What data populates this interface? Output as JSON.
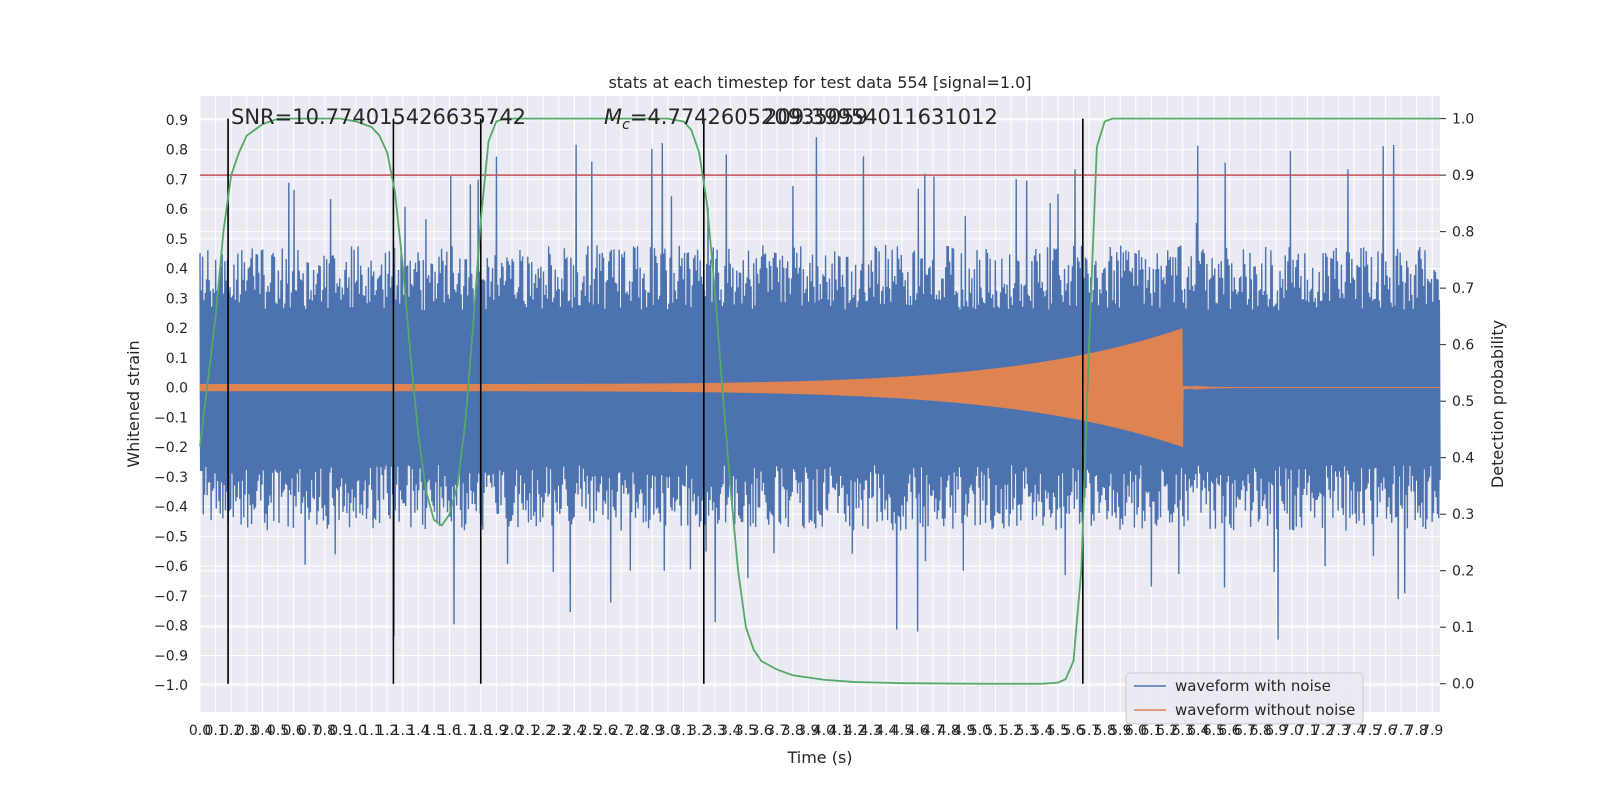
{
  "chart_data": {
    "type": "line",
    "title": "stats at each timestep for test data 554 [signal=1.0]",
    "xlabel": "Time (s)",
    "ylabel": "Whitened strain",
    "y2label": "Detection probability",
    "xlim": [
      0.0,
      7.95
    ],
    "ylim": [
      -1.09,
      0.98
    ],
    "y2lim": [
      -0.05,
      1.04
    ],
    "grid": true,
    "x_ticks": [
      "0.0",
      "0.1",
      "0.2",
      "0.3",
      "0.4",
      "0.5",
      "0.6",
      "0.7",
      "0.8",
      "0.9",
      "1.0",
      "1.1",
      "1.2",
      "1.3",
      "1.4",
      "1.5",
      "1.6",
      "1.7",
      "1.8",
      "1.9",
      "2.0",
      "2.1",
      "2.2",
      "2.3",
      "2.4",
      "2.5",
      "2.6",
      "2.7",
      "2.8",
      "2.9",
      "3.0",
      "3.1",
      "3.2",
      "3.3",
      "3.4",
      "3.5",
      "3.6",
      "3.7",
      "3.8",
      "3.9",
      "4.0",
      "4.1",
      "4.2",
      "4.3",
      "4.4",
      "4.5",
      "4.6",
      "4.7",
      "4.8",
      "4.9",
      "5.0",
      "5.1",
      "5.2",
      "5.3",
      "5.4",
      "5.5",
      "5.6",
      "5.7",
      "5.8",
      "5.9",
      "6.0",
      "6.1",
      "6.2",
      "6.3",
      "6.4",
      "6.5",
      "6.6",
      "6.7",
      "6.8",
      "6.9",
      "7.0",
      "7.1",
      "7.2",
      "7.3",
      "7.4",
      "7.5",
      "7.6",
      "7.7",
      "7.8",
      "7.9"
    ],
    "y_ticks": [
      "0.9",
      "0.8",
      "0.7",
      "0.6",
      "0.5",
      "0.4",
      "0.3",
      "0.2",
      "0.1",
      "0.0",
      "−0.1",
      "−0.2",
      "−0.3",
      "−0.4",
      "−0.5",
      "−0.6",
      "−0.7",
      "−0.8",
      "−0.9",
      "−1.0"
    ],
    "y2_ticks": [
      "1.0",
      "0.9",
      "0.8",
      "0.7",
      "0.6",
      "0.5",
      "0.4",
      "0.3",
      "0.2",
      "0.1",
      "0.0"
    ],
    "annotations": {
      "snr": "SNR=10.774015426635742",
      "mc_symbol": "M",
      "mc_sub": "c",
      "mc_value": "=4.774260520935059",
      "mc_overlap": "209.39954011631012"
    },
    "threshold_y2": 0.9,
    "vlines_x": [
      0.18,
      1.24,
      1.8,
      3.23,
      5.66
    ],
    "series": [
      {
        "name": "waveform with noise",
        "color": "#4c72b0",
        "envelope_hi": 0.5,
        "envelope_lo": -0.45
      },
      {
        "name": "waveform without noise",
        "color": "#dd8452",
        "chirp_start": 0.0,
        "merger": 6.3,
        "peak": 0.2
      },
      {
        "color": "#55a868",
        "x": [
          0.0,
          0.1,
          0.15,
          0.2,
          0.25,
          0.3,
          0.4,
          0.5,
          0.7,
          0.9,
          1.0,
          1.1,
          1.15,
          1.2,
          1.25,
          1.3,
          1.35,
          1.4,
          1.45,
          1.5,
          1.55,
          1.6,
          1.65,
          1.7,
          1.75,
          1.8,
          1.85,
          1.9,
          1.95,
          2.0,
          2.2,
          2.5,
          2.8,
          3.0,
          3.1,
          3.15,
          3.2,
          3.25,
          3.3,
          3.35,
          3.4,
          3.45,
          3.5,
          3.55,
          3.6,
          3.7,
          3.8,
          4.0,
          4.2,
          4.5,
          5.0,
          5.4,
          5.5,
          5.55,
          5.6,
          5.65,
          5.7,
          5.75,
          5.8,
          5.85,
          5.9,
          6.0,
          6.5,
          7.0,
          7.5,
          7.95
        ],
        "y": [
          0.42,
          0.65,
          0.8,
          0.9,
          0.94,
          0.97,
          0.99,
          1.0,
          1.0,
          1.0,
          0.995,
          0.985,
          0.97,
          0.94,
          0.87,
          0.74,
          0.58,
          0.44,
          0.34,
          0.29,
          0.28,
          0.3,
          0.35,
          0.46,
          0.63,
          0.82,
          0.96,
          0.995,
          1.0,
          1.0,
          1.0,
          1.0,
          1.0,
          1.0,
          0.995,
          0.98,
          0.94,
          0.85,
          0.7,
          0.52,
          0.35,
          0.2,
          0.1,
          0.06,
          0.04,
          0.025,
          0.015,
          0.007,
          0.003,
          0.001,
          0.0,
          0.0,
          0.002,
          0.008,
          0.04,
          0.2,
          0.6,
          0.95,
          0.995,
          1.0,
          1.0,
          1.0,
          1.0,
          1.0,
          1.0,
          1.0
        ]
      }
    ],
    "legend": {
      "position": "lower-right"
    }
  }
}
